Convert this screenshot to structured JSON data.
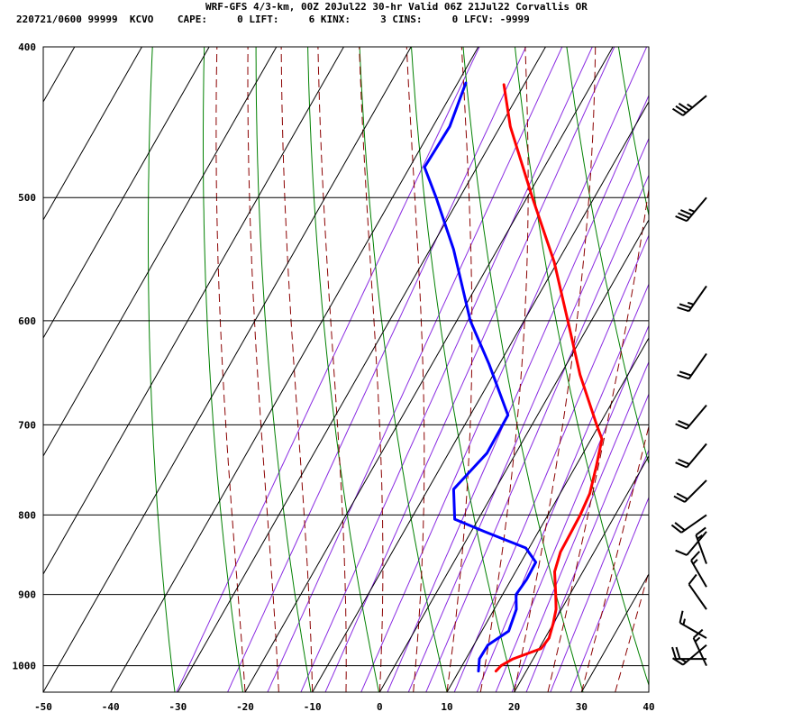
{
  "header": {
    "title": "WRF-GFS 4/3-km, 00Z 20Jul22 30-hr Valid 06Z 21Jul22 Corvallis OR",
    "run_id": "220721/0600 99999",
    "station": "KCVO",
    "cape_label": "CAPE:",
    "cape_value": "0",
    "lift_label": "LIFT:",
    "lift_value": "6",
    "kinx_label": "KINX:",
    "kinx_value": "3",
    "cins_label": "CINS:",
    "cins_value": "0",
    "lfcv_label": "LFCV:",
    "lfcv_value": "-9999"
  },
  "colors": {
    "temperature": "#ff0000",
    "dewpoint": "#0000ff",
    "isotherm_grid": "#000000",
    "dry_adiabat": "#008000",
    "moist_adiabat": "#8b0000",
    "mixing_ratio": "#8a2be2",
    "wind_barb": "#000000"
  },
  "chart_data": {
    "type": "line",
    "chart_kind": "skew-T log-P sounding",
    "xlim": [
      -50,
      40
    ],
    "ylim": [
      1040,
      400
    ],
    "y_scale": "log",
    "x_ticks": [
      "-50",
      "-40",
      "-30",
      "-20",
      "-10",
      "0",
      "10",
      "20",
      "30",
      "40"
    ],
    "y_ticks": [
      "400",
      "500",
      "600",
      "700",
      "800",
      "900",
      "1000"
    ],
    "grid": true,
    "series": [
      {
        "key": "temperature",
        "color": "#ff0000",
        "points": [
          {
            "p": 1008,
            "t": 15.5
          },
          {
            "p": 1000,
            "t": 15.8
          },
          {
            "p": 990,
            "t": 17.0
          },
          {
            "p": 975,
            "t": 20.3
          },
          {
            "p": 960,
            "t": 20.6
          },
          {
            "p": 940,
            "t": 20.0
          },
          {
            "p": 920,
            "t": 19.2
          },
          {
            "p": 900,
            "t": 17.9
          },
          {
            "p": 870,
            "t": 15.8
          },
          {
            "p": 845,
            "t": 15.0
          },
          {
            "p": 820,
            "t": 14.9
          },
          {
            "p": 800,
            "t": 14.8
          },
          {
            "p": 775,
            "t": 14.4
          },
          {
            "p": 745,
            "t": 13.1
          },
          {
            "p": 715,
            "t": 11.6
          },
          {
            "p": 700,
            "t": 9.6
          },
          {
            "p": 650,
            "t": 2.9
          },
          {
            "p": 600,
            "t": -3.5
          },
          {
            "p": 550,
            "t": -10.5
          },
          {
            "p": 500,
            "t": -19.2
          },
          {
            "p": 450,
            "t": -28.5
          },
          {
            "p": 423,
            "t": -33.0
          }
        ]
      },
      {
        "key": "dewpoint",
        "color": "#0000ff",
        "points": [
          {
            "p": 1008,
            "t": 12.9
          },
          {
            "p": 990,
            "t": 12.0
          },
          {
            "p": 970,
            "t": 12.1
          },
          {
            "p": 950,
            "t": 14.0
          },
          {
            "p": 920,
            "t": 13.3
          },
          {
            "p": 900,
            "t": 12.0
          },
          {
            "p": 880,
            "t": 12.3
          },
          {
            "p": 858,
            "t": 12.2
          },
          {
            "p": 840,
            "t": 9.5
          },
          {
            "p": 820,
            "t": 2.0
          },
          {
            "p": 805,
            "t": -3.5
          },
          {
            "p": 770,
            "t": -6.2
          },
          {
            "p": 730,
            "t": -4.3
          },
          {
            "p": 690,
            "t": -4.4
          },
          {
            "p": 640,
            "t": -11.5
          },
          {
            "p": 600,
            "t": -18.0
          },
          {
            "p": 540,
            "t": -26.5
          },
          {
            "p": 500,
            "t": -33.5
          },
          {
            "p": 478,
            "t": -37.8
          },
          {
            "p": 450,
            "t": -37.5
          },
          {
            "p": 422,
            "t": -38.8
          }
        ]
      }
    ],
    "wind_profile": [
      {
        "p": 1000,
        "dir": 335,
        "kt": 15
      },
      {
        "p": 990,
        "dir": 270,
        "kt": 20
      },
      {
        "p": 970,
        "dir": 230,
        "kt": 15
      },
      {
        "p": 960,
        "dir": 300,
        "kt": 15
      },
      {
        "p": 920,
        "dir": 325,
        "kt": 10
      },
      {
        "p": 890,
        "dir": 330,
        "kt": 15
      },
      {
        "p": 860,
        "dir": 340,
        "kt": 15
      },
      {
        "p": 820,
        "dir": 220,
        "kt": 10
      },
      {
        "p": 800,
        "dir": 235,
        "kt": 20
      },
      {
        "p": 760,
        "dir": 225,
        "kt": 20
      },
      {
        "p": 720,
        "dir": 220,
        "kt": 20
      },
      {
        "p": 680,
        "dir": 220,
        "kt": 20
      },
      {
        "p": 630,
        "dir": 215,
        "kt": 20
      },
      {
        "p": 570,
        "dir": 215,
        "kt": 25
      },
      {
        "p": 500,
        "dir": 220,
        "kt": 35
      },
      {
        "p": 430,
        "dir": 230,
        "kt": 35
      }
    ]
  }
}
